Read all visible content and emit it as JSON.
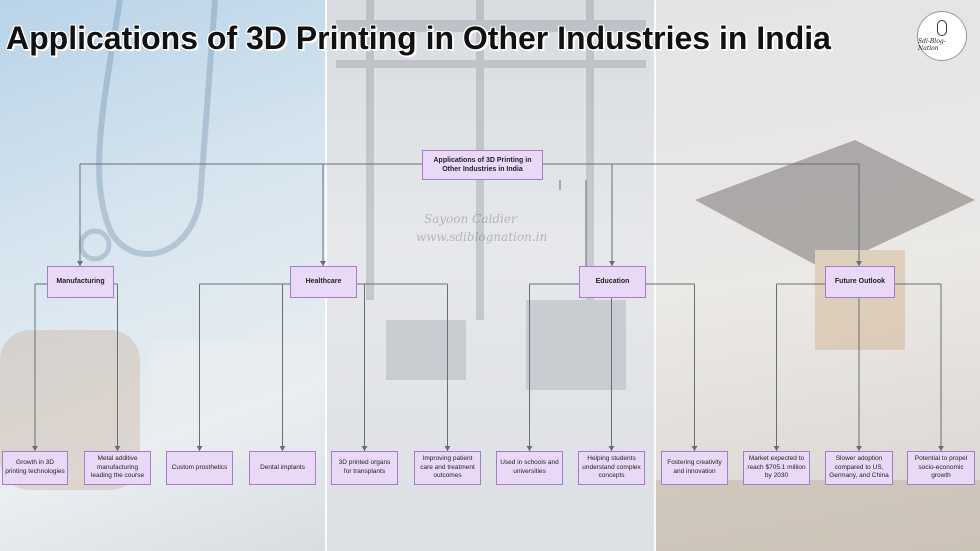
{
  "title": "Applications of 3D Printing in Other Industries in India",
  "logo_text": "Sdi-Blog-Nation",
  "watermark": {
    "line1": "Sayoon Caldier",
    "line2": "www.sdiblognation.in"
  },
  "colors": {
    "node_fill": "#e9d9f6",
    "node_border": "#a47cc7",
    "connector": "#666f79"
  },
  "diagram": {
    "root": "Applications of 3D Printing in Other Industries in India",
    "categories": [
      {
        "label": "Manufacturing",
        "children": [
          "Growth in 3D printing technologies",
          "Metal additive manufacturing leading the course"
        ]
      },
      {
        "label": "Healthcare",
        "children": [
          "Custom prosthetics",
          "Dental implants",
          "3D printed organs for transplants",
          "Improving patient care and treatment outcomes"
        ]
      },
      {
        "label": "Education",
        "children": [
          "Used in schools and universities",
          "Helping students understand complex concepts",
          "Fostering creativity and innovation"
        ]
      },
      {
        "label": "Future Outlook",
        "children": [
          "Market expected to reach $705.1 million by 2030",
          "Slower adoption compared to US, Germany, and China",
          "Potential to propel socio-economic growth"
        ]
      }
    ]
  }
}
